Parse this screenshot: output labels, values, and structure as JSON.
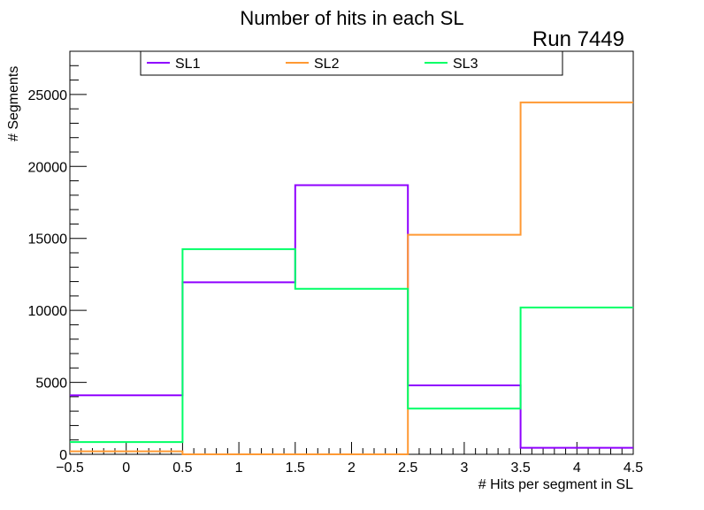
{
  "chart_data": {
    "type": "line",
    "step": true,
    "title": "Number of hits in each SL",
    "run_label": "Run 7449",
    "xlabel": "# Hits per segment in SL",
    "ylabel": "# Segments",
    "xlim": [
      -0.5,
      4.5
    ],
    "ylim": [
      0,
      28000
    ],
    "x_ticks": [
      -0.5,
      0,
      0.5,
      1,
      1.5,
      2,
      2.5,
      3,
      3.5,
      4,
      4.5
    ],
    "x_tick_labels": [
      "−0.5",
      "0",
      "0.5",
      "1",
      "1.5",
      "2",
      "2.5",
      "3",
      "3.5",
      "4",
      "4.5"
    ],
    "y_ticks": [
      0,
      5000,
      10000,
      15000,
      20000,
      25000
    ],
    "y_tick_labels": [
      "0",
      "5000",
      "10000",
      "15000",
      "20000",
      "25000"
    ],
    "bin_edges": [
      -0.5,
      0.5,
      1.5,
      2.5,
      3.5,
      4.5
    ],
    "legend_position": "top",
    "series": [
      {
        "name": "SL1",
        "color": "#8f00ff",
        "values": [
          4100,
          11950,
          18700,
          4790,
          450
        ]
      },
      {
        "name": "SL2",
        "color": "#ff9933",
        "values": [
          205,
          0,
          0,
          15250,
          24450
        ]
      },
      {
        "name": "SL3",
        "color": "#00ff66",
        "values": [
          850,
          14250,
          11500,
          3180,
          10200
        ]
      }
    ]
  }
}
